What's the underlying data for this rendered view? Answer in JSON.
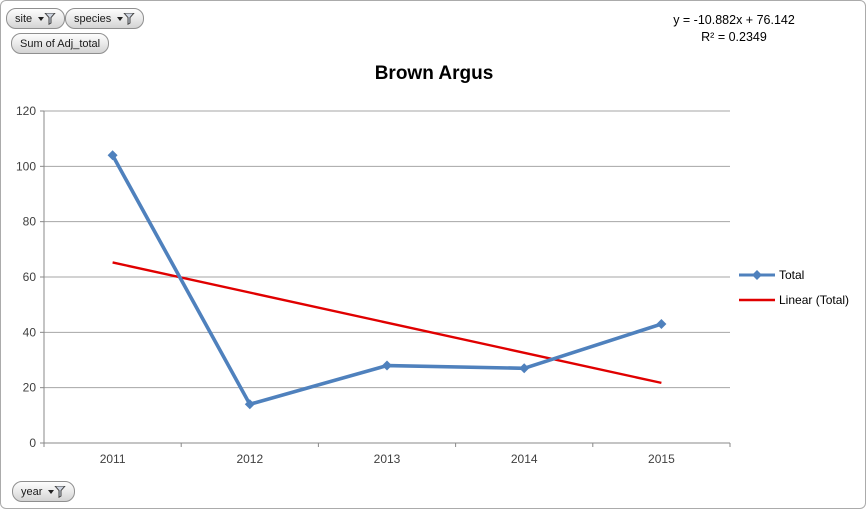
{
  "pivot_buttons": {
    "site": "site",
    "species": "species",
    "sum_value": "Sum of Adj_total",
    "year": "year"
  },
  "equation": {
    "line1": "y = -10.882x + 76.142",
    "line2": "R² = 0.2349"
  },
  "chart_data": {
    "type": "line",
    "title": "Brown Argus",
    "categories": [
      "2011",
      "2012",
      "2013",
      "2014",
      "2015"
    ],
    "series": [
      {
        "name": "Total",
        "values": [
          104,
          14,
          28,
          27,
          43
        ],
        "color": "#4F81BD",
        "marker": "diamond"
      }
    ],
    "trendline": {
      "name": "Linear (Total)",
      "color": "#E00000",
      "equation": "y = -10.882x + 76.142",
      "r_squared": 0.2349,
      "endpoint_values": [
        65.26,
        21.73
      ]
    },
    "ylim": [
      0,
      120
    ],
    "ytick_step": 20,
    "grid": true,
    "legend_position": "right",
    "xlabel": "",
    "ylabel": ""
  },
  "colors": {
    "series_blue": "#4F81BD",
    "trend_red": "#E00000",
    "gridline": "#A6A6A6",
    "axis_line": "#898989",
    "tick_text": "#3F3F3F"
  }
}
